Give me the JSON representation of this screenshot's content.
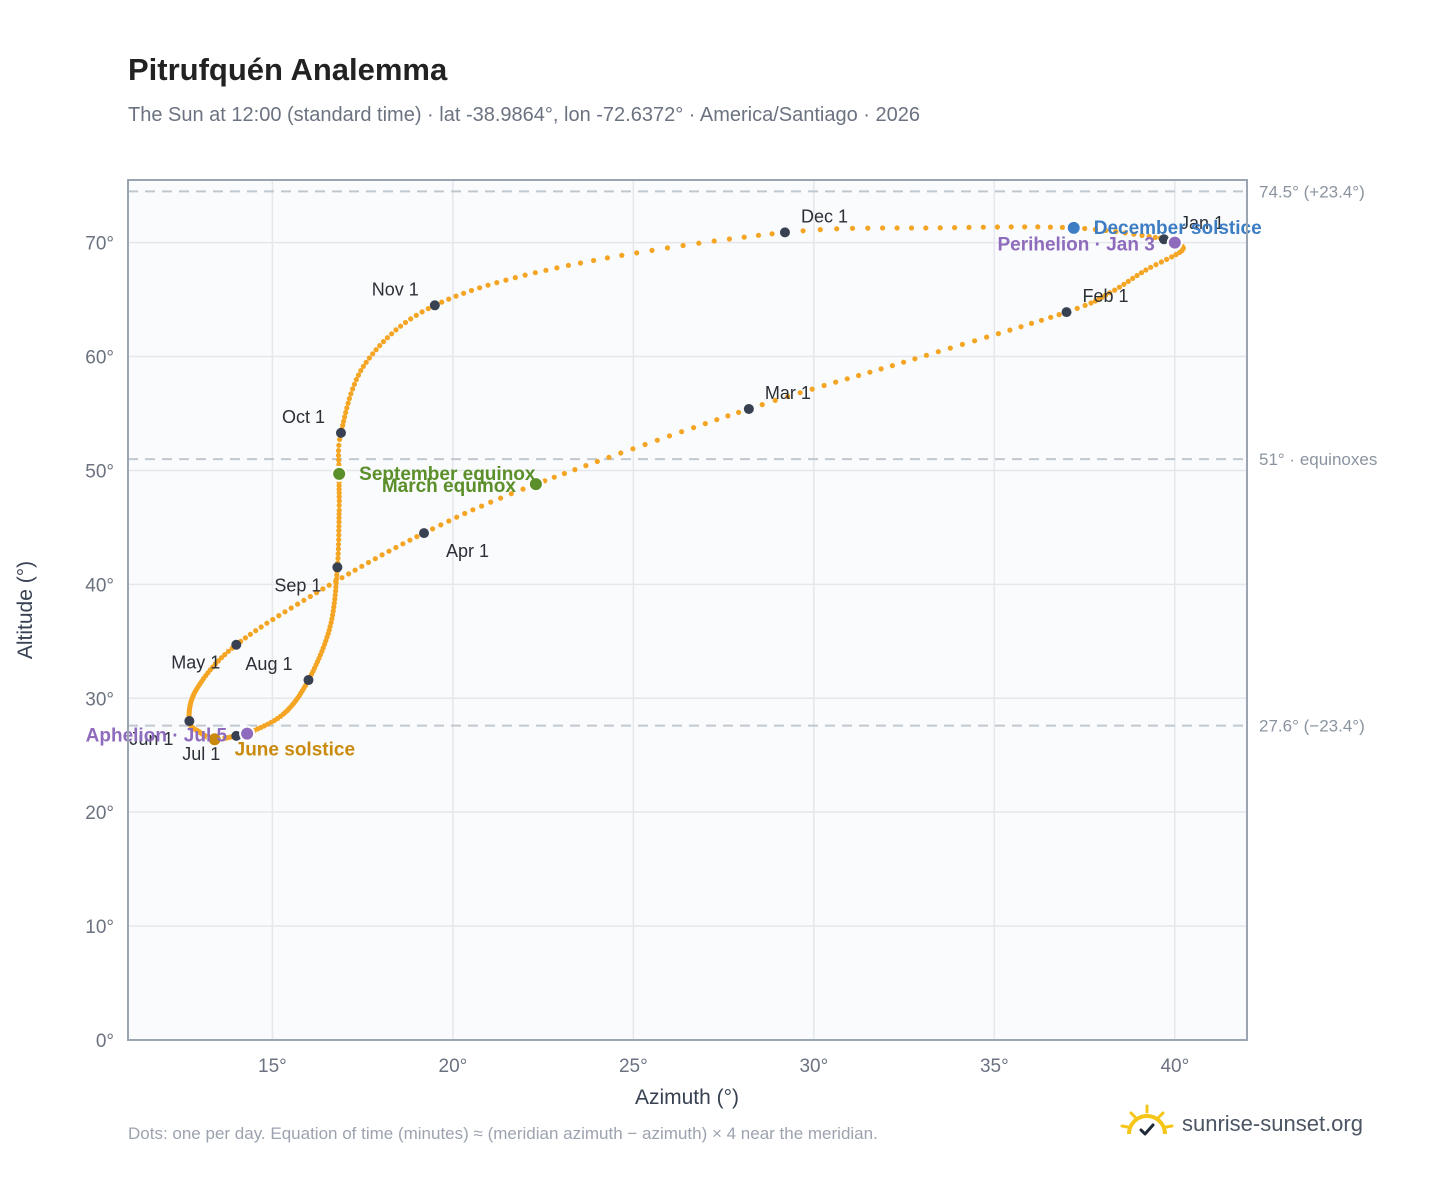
{
  "title": "Pitrufquén Analemma",
  "subtitle": "The Sun at 12:00 (standard time) · lat -38.9864°, lon -72.6372° · America/Santiago · 2026",
  "footnote": "Dots: one per day. Equation of time (minutes) ≈ (meridian azimuth − azimuth) × 4 near the meridian.",
  "brand": {
    "name": "sunrise-sunset.org",
    "icon": "sun-check-logo-icon"
  },
  "colors": {
    "path": "#f5a524",
    "month_marker": "#374151",
    "equinox": "#5a8f29",
    "december_solstice": "#3d7dc4",
    "june_solstice": "#c98a0e",
    "apsis": "#8e6bbd",
    "reference_line": "#c0c8d0",
    "plot_bg": "#fafbfd",
    "grid": "#e5e7eb",
    "frame": "#9aa5b1"
  },
  "chart_data": {
    "type": "scatter",
    "xlabel": "Azimuth (°)",
    "ylabel": "Altitude (°)",
    "xlim": [
      11,
      42
    ],
    "ylim": [
      0,
      75.5
    ],
    "x_ticks": [
      15,
      20,
      25,
      30,
      35,
      40
    ],
    "x_tick_labels": [
      "15°",
      "20°",
      "25°",
      "30°",
      "35°",
      "40°"
    ],
    "y_ticks": [
      0,
      10,
      20,
      30,
      40,
      50,
      60,
      70
    ],
    "y_tick_labels": [
      "0°",
      "10°",
      "20°",
      "30°",
      "40°",
      "50°",
      "60°",
      "70°"
    ],
    "grid": true,
    "reference_lines": [
      {
        "y": 74.5,
        "label": "74.5° (+23.4°)"
      },
      {
        "y": 51.0,
        "label": "51° · equinoxes"
      },
      {
        "y": 27.6,
        "label": "27.6° (−23.4°)"
      }
    ],
    "path_anchors": [
      {
        "day": 1,
        "az": 39.7,
        "alt": 70.3
      },
      {
        "day": 3,
        "az": 40.0,
        "alt": 70.0
      },
      {
        "day": 8,
        "az": 40.2,
        "alt": 69.3
      },
      {
        "day": 16,
        "az": 39.2,
        "alt": 67.6
      },
      {
        "day": 24,
        "az": 38.2,
        "alt": 65.6
      },
      {
        "day": 32,
        "az": 37.0,
        "alt": 63.9
      },
      {
        "day": 46,
        "az": 32.8,
        "alt": 59.8
      },
      {
        "day": 60,
        "az": 28.2,
        "alt": 55.4
      },
      {
        "day": 79,
        "az": 22.3,
        "alt": 48.8
      },
      {
        "day": 91,
        "az": 19.2,
        "alt": 44.5
      },
      {
        "day": 106,
        "az": 16.4,
        "alt": 39.6
      },
      {
        "day": 121,
        "az": 14.0,
        "alt": 34.7
      },
      {
        "day": 136,
        "az": 12.9,
        "alt": 30.8
      },
      {
        "day": 152,
        "az": 12.7,
        "alt": 28.0
      },
      {
        "day": 163,
        "az": 13.0,
        "alt": 27.0
      },
      {
        "day": 172,
        "az": 13.4,
        "alt": 26.4
      },
      {
        "day": 182,
        "az": 14.0,
        "alt": 26.7
      },
      {
        "day": 186,
        "az": 14.3,
        "alt": 26.9
      },
      {
        "day": 198,
        "az": 15.3,
        "alt": 28.6
      },
      {
        "day": 213,
        "az": 16.0,
        "alt": 31.6
      },
      {
        "day": 229,
        "az": 16.6,
        "alt": 36.3
      },
      {
        "day": 244,
        "az": 16.8,
        "alt": 41.5
      },
      {
        "day": 257,
        "az": 16.85,
        "alt": 46.5
      },
      {
        "day": 266,
        "az": 16.85,
        "alt": 49.7
      },
      {
        "day": 274,
        "az": 16.9,
        "alt": 53.3
      },
      {
        "day": 290,
        "az": 17.6,
        "alt": 59.5
      },
      {
        "day": 305,
        "az": 19.5,
        "alt": 64.5
      },
      {
        "day": 320,
        "az": 23.2,
        "alt": 68.0
      },
      {
        "day": 335,
        "az": 29.2,
        "alt": 70.9
      },
      {
        "day": 345,
        "az": 33.5,
        "alt": 71.3
      },
      {
        "day": 355,
        "az": 37.2,
        "alt": 71.3
      },
      {
        "day": 365,
        "az": 39.6,
        "alt": 70.4
      }
    ],
    "month_markers": [
      {
        "label": "Jan 1",
        "az": 39.7,
        "alt": 70.3,
        "pos": "upper-right"
      },
      {
        "label": "Feb 1",
        "az": 37.0,
        "alt": 63.9,
        "pos": "upper-right"
      },
      {
        "label": "Mar 1",
        "az": 28.2,
        "alt": 55.4,
        "pos": "upper-right"
      },
      {
        "label": "Apr 1",
        "az": 19.2,
        "alt": 44.5,
        "pos": "left-below"
      },
      {
        "label": "May 1",
        "az": 14.0,
        "alt": 34.7,
        "pos": "lower-left"
      },
      {
        "label": "Jun 1",
        "az": 12.7,
        "alt": 28.0,
        "pos": "lower-left"
      },
      {
        "label": "Jul 1",
        "az": 14.0,
        "alt": 26.7,
        "pos": "below-left"
      },
      {
        "label": "Aug 1",
        "az": 16.0,
        "alt": 31.6,
        "pos": "upper-left"
      },
      {
        "label": "Sep 1",
        "az": 16.8,
        "alt": 41.5,
        "pos": "lower-left"
      },
      {
        "label": "Oct 1",
        "az": 16.9,
        "alt": 53.3,
        "pos": "upper-left"
      },
      {
        "label": "Nov 1",
        "az": 19.5,
        "alt": 64.5,
        "pos": "upper-left"
      },
      {
        "label": "Dec 1",
        "az": 29.2,
        "alt": 70.9,
        "pos": "upper-right"
      }
    ],
    "events": [
      {
        "label": "December solstice",
        "az": 37.2,
        "alt": 71.3,
        "kind": "december_solstice",
        "pos": "right"
      },
      {
        "label": "Perihelion · Jan 3",
        "az": 40.0,
        "alt": 70.0,
        "kind": "apsis",
        "pos": "left"
      },
      {
        "label": "March equinox",
        "az": 22.3,
        "alt": 48.8,
        "kind": "equinox",
        "pos": "left"
      },
      {
        "label": "September equinox",
        "az": 16.85,
        "alt": 49.7,
        "kind": "equinox",
        "pos": "right"
      },
      {
        "label": "June solstice",
        "az": 13.4,
        "alt": 26.4,
        "kind": "june_solstice",
        "pos": "right-below"
      },
      {
        "label": "Aphelion · Jul 5",
        "az": 14.3,
        "alt": 26.9,
        "kind": "apsis",
        "pos": "left"
      }
    ]
  }
}
